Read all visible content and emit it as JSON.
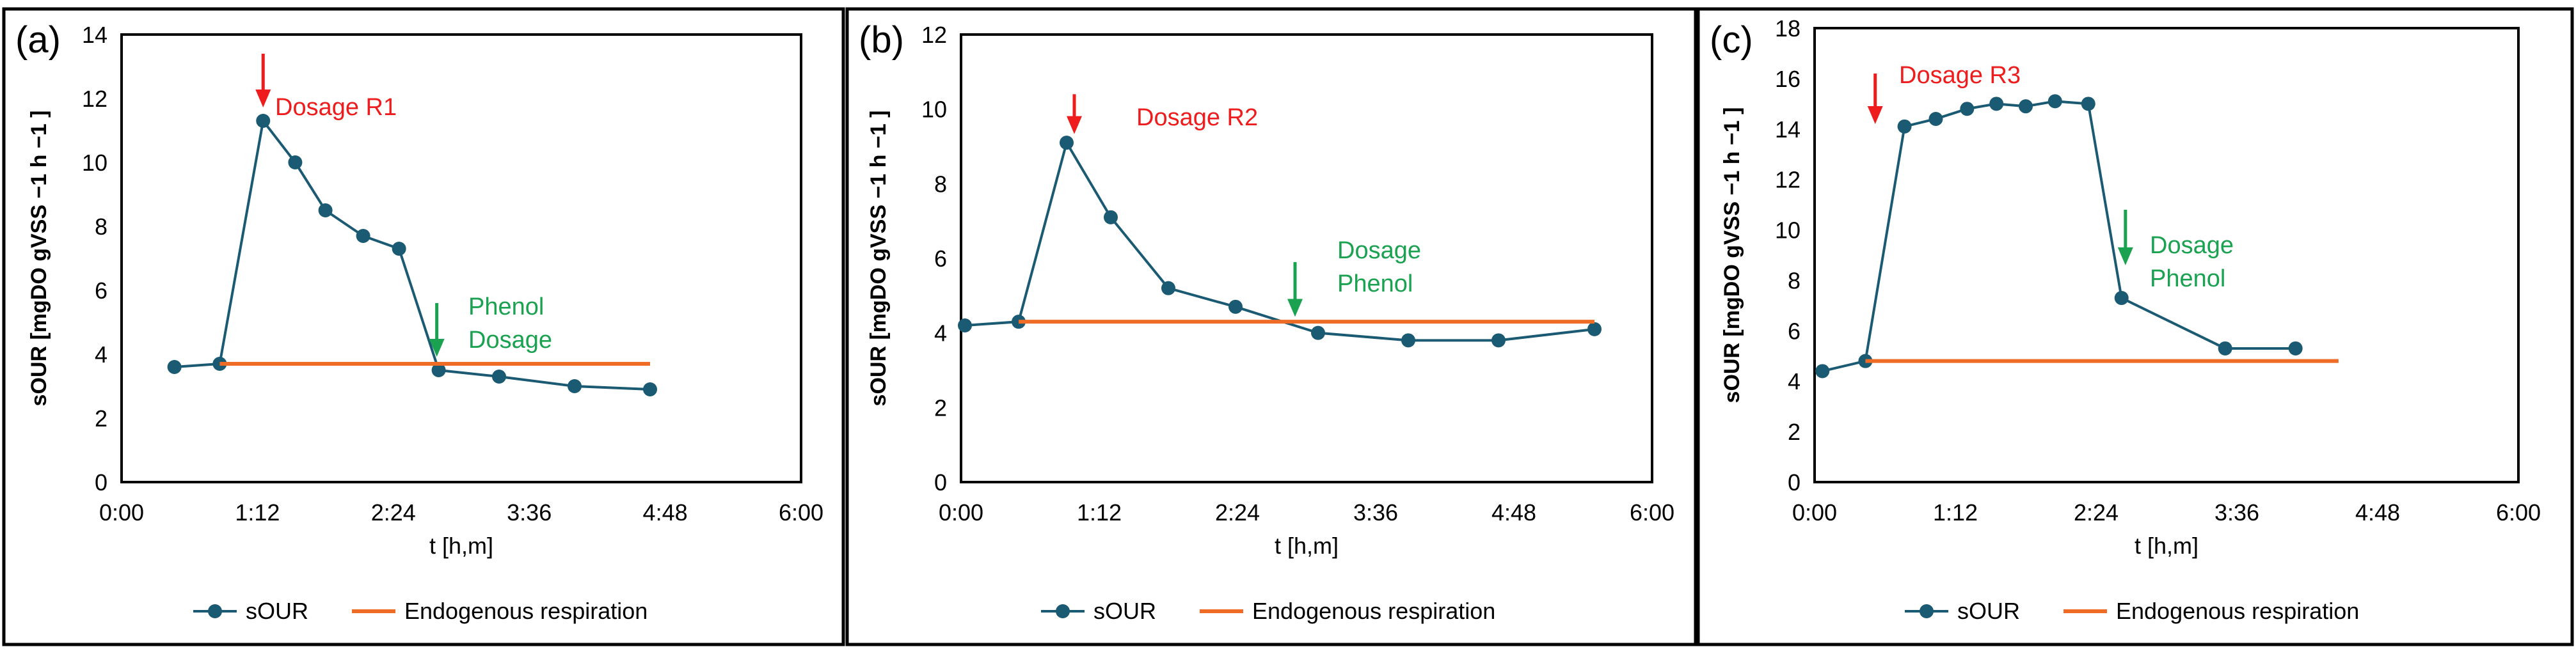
{
  "colors": {
    "series": "#1b5a73",
    "endogenous": "#ee6c26",
    "dosage_red": "#ee1c1c",
    "phenol_green": "#1aa251",
    "axis": "#8c8c8c",
    "text": "#000000",
    "border": "#000000"
  },
  "chart_data": [
    {
      "type": "line",
      "panel_label": "(a)",
      "xlabel": "t [h,m]",
      "ylabel": "sOUR [mgDO gVSS −1 h −1 ]",
      "xlim": [
        0,
        360
      ],
      "ylim": [
        0,
        14
      ],
      "xticks": [
        0,
        72,
        144,
        216,
        288,
        360
      ],
      "xtick_labels": [
        "0:00",
        "1:12",
        "2:24",
        "3:36",
        "4:48",
        "6:00"
      ],
      "yticks": [
        0,
        2,
        4,
        6,
        8,
        10,
        12,
        14
      ],
      "ytick_labels": [
        "0",
        "2",
        "4",
        "6",
        "8",
        "10",
        "12",
        "14"
      ],
      "series": [
        {
          "name": "sOUR",
          "marker": "circle",
          "x": [
            28,
            52,
            75,
            92,
            108,
            128,
            147,
            168,
            200,
            240,
            280
          ],
          "y": [
            3.6,
            3.7,
            11.3,
            10.0,
            8.5,
            7.7,
            7.3,
            3.5,
            3.3,
            3.0,
            2.9
          ]
        },
        {
          "name": "Endogenous respiration",
          "marker": "none",
          "x": [
            52,
            280
          ],
          "y": [
            3.7,
            3.7
          ]
        }
      ],
      "annotations": [
        {
          "text": "Dosage R1",
          "color": "red",
          "arrow_x": 75,
          "arrow_y_from": 13.4,
          "arrow_y_to": 11.8
        },
        {
          "text": "Phenol Dosage",
          "lines": [
            "Phenol",
            "Dosage"
          ],
          "color": "green",
          "arrow_x": 167,
          "arrow_y_from": 5.6,
          "arrow_y_to": 4.0
        }
      ],
      "legend": {
        "entries": [
          "sOUR",
          "Endogenous respiration"
        ],
        "placement": "bottom"
      }
    },
    {
      "type": "line",
      "panel_label": "(b)",
      "xlabel": "t [h,m]",
      "ylabel": "sOUR [mgDO gVSS −1 h −1 ]",
      "xlim": [
        0,
        360
      ],
      "ylim": [
        0,
        12
      ],
      "xticks": [
        0,
        72,
        144,
        216,
        288,
        360
      ],
      "xtick_labels": [
        "0:00",
        "1:12",
        "2:24",
        "3:36",
        "4:48",
        "6:00"
      ],
      "yticks": [
        0,
        2,
        4,
        6,
        8,
        10,
        12
      ],
      "ytick_labels": [
        "0",
        "2",
        "4",
        "6",
        "8",
        "10",
        "12"
      ],
      "series": [
        {
          "name": "sOUR",
          "marker": "circle",
          "x": [
            2,
            30,
            55,
            78,
            108,
            143,
            186,
            233,
            280,
            330
          ],
          "y": [
            4.2,
            4.3,
            9.1,
            7.1,
            5.2,
            4.7,
            4.0,
            3.8,
            3.8,
            4.1
          ]
        },
        {
          "name": "Endogenous respiration",
          "marker": "none",
          "x": [
            30,
            330
          ],
          "y": [
            4.3,
            4.3
          ]
        }
      ],
      "annotations": [
        {
          "text": "Dosage R2",
          "color": "red",
          "arrow_x": 59,
          "arrow_y_from": 10.4,
          "arrow_y_to": 9.4
        },
        {
          "text": "Dosage Phenol",
          "lines": [
            "Dosage",
            "Phenol"
          ],
          "color": "green",
          "arrow_x": 174,
          "arrow_y_from": 5.9,
          "arrow_y_to": 4.5
        }
      ],
      "legend": {
        "entries": [
          "sOUR",
          "Endogenous respiration"
        ],
        "placement": "bottom"
      }
    },
    {
      "type": "line",
      "panel_label": "(c)",
      "xlabel": "t [h,m]",
      "ylabel": "sOUR [mgDO gVSS −1 h −1 ]",
      "xlim": [
        0,
        360
      ],
      "ylim": [
        0,
        18
      ],
      "xticks": [
        0,
        72,
        144,
        216,
        288,
        360
      ],
      "xtick_labels": [
        "0:00",
        "1:12",
        "2:24",
        "3:36",
        "4:48",
        "6:00"
      ],
      "yticks": [
        0,
        2,
        4,
        6,
        8,
        10,
        12,
        14,
        16,
        18
      ],
      "ytick_labels": [
        "0",
        "2",
        "4",
        "6",
        "8",
        "10",
        "12",
        "14",
        "16",
        "18"
      ],
      "series": [
        {
          "name": "sOUR",
          "marker": "circle",
          "x": [
            4,
            26,
            46,
            62,
            78,
            93,
            108,
            123,
            140,
            157,
            210,
            246
          ],
          "y": [
            4.4,
            4.8,
            14.1,
            14.4,
            14.8,
            15.0,
            14.9,
            15.1,
            15.0,
            7.3,
            5.3,
            5.3
          ]
        },
        {
          "name": "Endogenous respiration",
          "marker": "none",
          "x": [
            26,
            268
          ],
          "y": [
            4.8,
            4.8
          ]
        }
      ],
      "annotations": [
        {
          "text": "Dosage R3",
          "color": "red",
          "arrow_x": 31,
          "arrow_y_from": 16.2,
          "arrow_y_to": 14.3
        },
        {
          "text": "Dosage Phenol",
          "lines": [
            "Dosage",
            "Phenol"
          ],
          "color": "green",
          "arrow_x": 159,
          "arrow_y_from": 10.8,
          "arrow_y_to": 8.7
        }
      ],
      "legend": {
        "entries": [
          "sOUR",
          "Endogenous respiration"
        ],
        "placement": "bottom"
      }
    }
  ]
}
